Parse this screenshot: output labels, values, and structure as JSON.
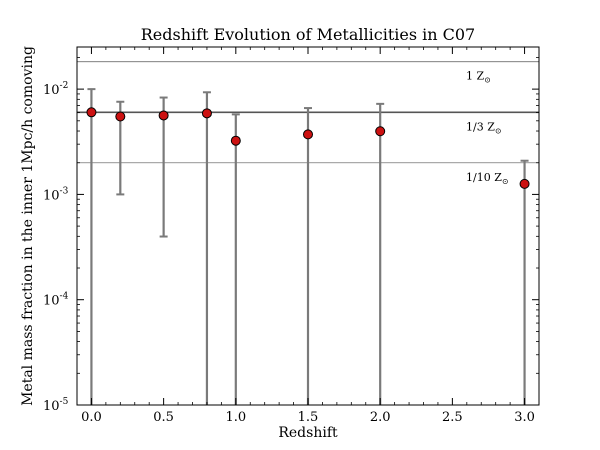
{
  "chart_data": {
    "type": "scatter",
    "title": "Redshift Evolution of Metallicities in C07",
    "xlabel": "Redshift",
    "ylabel": "Metal mass fraction in the inner 1Mpc/h comoving",
    "xlim": [
      -0.1,
      3.1
    ],
    "ylim_log10": [
      -5,
      -1.6
    ],
    "yscale": "log",
    "x_ticks": [
      {
        "value": 0.0,
        "label": "0.0"
      },
      {
        "value": 0.5,
        "label": "0.5"
      },
      {
        "value": 1.0,
        "label": "1.0"
      },
      {
        "value": 1.5,
        "label": "1.5"
      },
      {
        "value": 2.0,
        "label": "2.0"
      },
      {
        "value": 2.5,
        "label": "2.5"
      },
      {
        "value": 3.0,
        "label": "3.0"
      }
    ],
    "y_ticks": [
      {
        "log10": -2,
        "base": "10",
        "exp": "-2"
      },
      {
        "log10": -3,
        "base": "10",
        "exp": "-3"
      },
      {
        "log10": -4,
        "base": "10",
        "exp": "-4"
      },
      {
        "log10": -5,
        "base": "10",
        "exp": "-5"
      }
    ],
    "reference_lines": [
      {
        "log10": -1.74,
        "label_main": "1 Z",
        "label_sub": "⊙",
        "weight": "thin"
      },
      {
        "log10": -2.22,
        "label_main": "1/3 Z",
        "label_sub": "⊙",
        "weight": "thick"
      },
      {
        "log10": -2.7,
        "label_main": "1/10 Z",
        "label_sub": "⊙",
        "weight": "thin"
      }
    ],
    "series": [
      {
        "name": "C07",
        "color": "#cc1111",
        "points": [
          {
            "x": 0.0,
            "log10_y": -2.22,
            "log10_lo": -5.0,
            "log10_hi": -2.0
          },
          {
            "x": 0.2,
            "log10_y": -2.26,
            "log10_lo": -3.0,
            "log10_hi": -2.12
          },
          {
            "x": 0.5,
            "log10_y": -2.25,
            "log10_lo": -3.4,
            "log10_hi": -2.08
          },
          {
            "x": 0.8,
            "log10_y": -2.23,
            "log10_lo": -5.0,
            "log10_hi": -2.03
          },
          {
            "x": 1.0,
            "log10_y": -2.49,
            "log10_lo": -5.0,
            "log10_hi": -2.24
          },
          {
            "x": 1.5,
            "log10_y": -2.43,
            "log10_lo": -5.0,
            "log10_hi": -2.18
          },
          {
            "x": 2.0,
            "log10_y": -2.4,
            "log10_lo": -5.0,
            "log10_hi": -2.14
          },
          {
            "x": 3.0,
            "log10_y": -2.9,
            "log10_lo": -5.0,
            "log10_hi": -2.68
          }
        ]
      }
    ],
    "colors": {
      "errorbar": "#7a7a7a",
      "marker_fill": "#cc1111",
      "marker_edge": "#000000",
      "axes": "#000000",
      "refline": "#555555"
    }
  }
}
